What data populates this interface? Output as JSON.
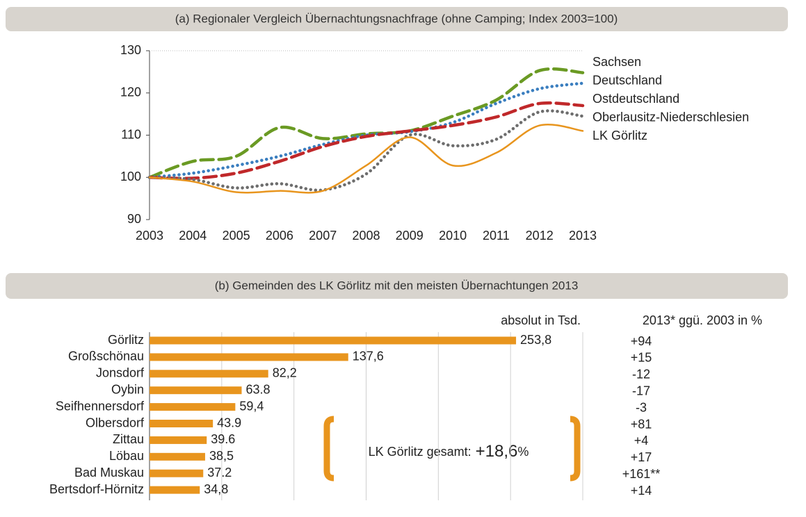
{
  "chart_data": [
    {
      "type": "line",
      "title": "(a) Regionaler Vergleich Übernachtungsnachfrage (ohne Camping; Index 2003=100)",
      "x": [
        2003,
        2004,
        2005,
        2006,
        2007,
        2008,
        2009,
        2010,
        2011,
        2012,
        2013
      ],
      "xlim": [
        2003,
        2013
      ],
      "xticks": [
        2003,
        2004,
        2005,
        2006,
        2007,
        2008,
        2009,
        2010,
        2011,
        2012,
        2013
      ],
      "ylim": [
        90,
        130
      ],
      "yticks": [
        90,
        100,
        110,
        120,
        130
      ],
      "grid": false,
      "legend": "right",
      "series": [
        {
          "name": "Sachsen",
          "color": "#6a9a23",
          "style": "dashed",
          "values": [
            100,
            103.8,
            105,
            111.8,
            109.2,
            110.3,
            111,
            114.5,
            118.3,
            125.3,
            124.8
          ]
        },
        {
          "name": "Deutschland",
          "color": "#3a7ebf",
          "style": "dotted",
          "values": [
            100,
            101,
            102.8,
            105,
            107.8,
            110,
            110.8,
            113,
            117.5,
            121,
            122.3
          ]
        },
        {
          "name": "Ostdeutschland",
          "color": "#c0282a",
          "style": "dashed",
          "values": [
            100,
            99.8,
            101,
            103.8,
            107.3,
            109.7,
            111,
            112.3,
            114.3,
            117.5,
            117
          ]
        },
        {
          "name": "Oberlausitz-Niederschlesien",
          "color": "#6d6d6d",
          "style": "dotted",
          "values": [
            100,
            99.5,
            97.5,
            98.5,
            97,
            100.8,
            110,
            107.5,
            109,
            115.5,
            114.5
          ]
        },
        {
          "name": "LK Görlitz",
          "color": "#e8951e",
          "style": "solid",
          "values": [
            100,
            99,
            96.5,
            96.8,
            96.8,
            102.8,
            109.5,
            102.8,
            105.8,
            112.3,
            111
          ]
        }
      ]
    },
    {
      "type": "bar",
      "orientation": "horizontal",
      "title": "(b) Gemeinden des LK Görlitz mit den meisten Übernachtungen 2013",
      "value_header": "absolut in Tsd.",
      "change_header": "2013* ggü. 2003 in %",
      "categories": [
        "Görlitz",
        "Großschönau",
        "Jonsdorf",
        "Oybin",
        "Seifhennersdorf",
        "Olbersdorf",
        "Zittau",
        "Löbau",
        "Bad Muskau",
        "Bertsdorf-Hörnitz"
      ],
      "values": [
        253.8,
        137.6,
        82.2,
        63.8,
        59.4,
        43.9,
        39.6,
        38.5,
        37.2,
        34.8
      ],
      "value_labels": [
        "253,8",
        "137,6",
        "82,2",
        "63.8",
        "59,4",
        "43.9",
        "39.6",
        "38,5",
        "37.2",
        "34,8"
      ],
      "changes": [
        "+94",
        "+15",
        "-12",
        "-17",
        "-3",
        "+81",
        "+4",
        "+17",
        "+161**",
        "+14"
      ],
      "color": "#e8951e",
      "xlim": [
        0,
        300
      ],
      "xticks": [
        0,
        50,
        100,
        150,
        200,
        250,
        300
      ],
      "grid": true,
      "total_label": "LK Görlitz gesamt:",
      "total_value": "+18,6",
      "total_unit": "%"
    }
  ]
}
